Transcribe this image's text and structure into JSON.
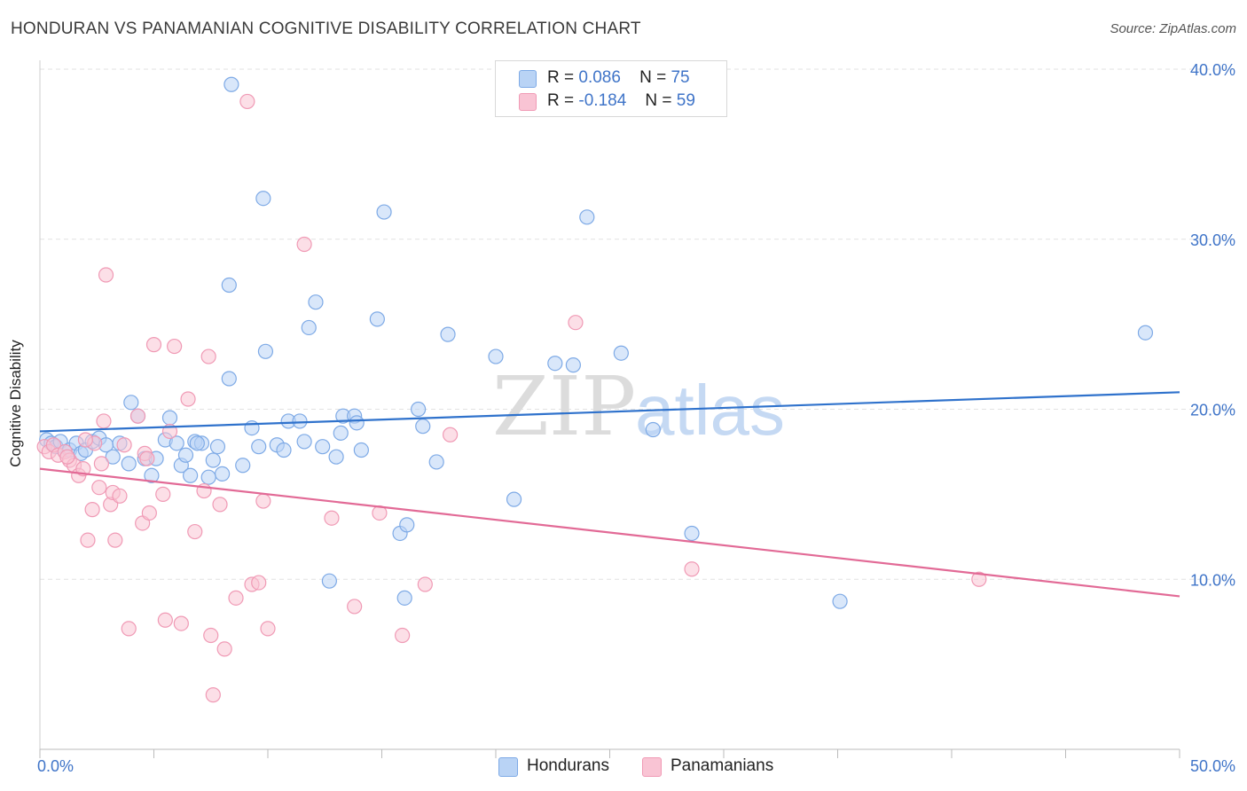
{
  "header": {
    "title": "HONDURAN VS PANAMANIAN COGNITIVE DISABILITY CORRELATION CHART",
    "source": "Source: ZipAtlas.com"
  },
  "watermark": {
    "zip": "ZIP",
    "atlas": "atlas"
  },
  "legend": {
    "rows": [
      {
        "r_label": "R =",
        "r_value": "0.086",
        "n_label": "N =",
        "n_value": "75"
      },
      {
        "r_label": "R =",
        "r_value": "-0.184",
        "n_label": "N =",
        "n_value": "59"
      }
    ]
  },
  "bottom_legend": {
    "series1": "Hondurans",
    "series2": "Panamanians"
  },
  "colors": {
    "blue_fill": "#b9d3f5",
    "blue_stroke": "#7eaae6",
    "blue_line": "#2f72cc",
    "pink_fill": "#f9c4d4",
    "pink_stroke": "#f09ab5",
    "pink_line": "#e26a96",
    "grid": "#e2e2e2",
    "tick_text": "#3f74c8"
  },
  "chart_data": {
    "type": "scatter",
    "title": "HONDURAN VS PANAMANIAN COGNITIVE DISABILITY CORRELATION CHART",
    "xlabel": "",
    "ylabel": "Cognitive Disability",
    "xlim": [
      0,
      50
    ],
    "ylim": [
      0,
      40
    ],
    "x_tick_labels": [
      "0.0%",
      "50.0%"
    ],
    "y_ticks": [
      10,
      20,
      30,
      40
    ],
    "y_tick_labels": [
      "10.0%",
      "20.0%",
      "30.0%",
      "40.0%"
    ],
    "grid": true,
    "series": [
      {
        "name": "Hondurans",
        "color": "#b9d3f5",
        "trend": {
          "x": [
            0,
            50
          ],
          "y": [
            18.7,
            21.0
          ]
        },
        "points": [
          [
            0.3,
            18.2
          ],
          [
            0.5,
            18.0
          ],
          [
            0.7,
            17.8
          ],
          [
            0.9,
            18.1
          ],
          [
            1.1,
            17.5
          ],
          [
            1.3,
            17.6
          ],
          [
            1.6,
            18.0
          ],
          [
            1.8,
            17.4
          ],
          [
            2.0,
            17.6
          ],
          [
            2.3,
            18.1
          ],
          [
            2.6,
            18.3
          ],
          [
            2.9,
            17.9
          ],
          [
            3.2,
            17.2
          ],
          [
            3.5,
            18.0
          ],
          [
            3.9,
            16.8
          ],
          [
            4.3,
            19.6
          ],
          [
            4.6,
            17.1
          ],
          [
            4.9,
            16.1
          ],
          [
            5.1,
            17.1
          ],
          [
            5.5,
            18.2
          ],
          [
            5.7,
            19.5
          ],
          [
            6.0,
            18.0
          ],
          [
            6.2,
            16.7
          ],
          [
            6.4,
            17.3
          ],
          [
            6.6,
            16.1
          ],
          [
            6.8,
            18.1
          ],
          [
            7.1,
            18.0
          ],
          [
            7.4,
            16.0
          ],
          [
            7.6,
            17.0
          ],
          [
            7.8,
            17.8
          ],
          [
            8.0,
            16.2
          ],
          [
            8.3,
            27.3
          ],
          [
            8.3,
            21.8
          ],
          [
            8.9,
            16.7
          ],
          [
            9.3,
            18.9
          ],
          [
            9.6,
            17.8
          ],
          [
            9.8,
            32.4
          ],
          [
            9.9,
            23.4
          ],
          [
            10.4,
            17.9
          ],
          [
            10.7,
            17.6
          ],
          [
            10.9,
            19.3
          ],
          [
            11.4,
            19.3
          ],
          [
            11.6,
            18.1
          ],
          [
            11.8,
            24.8
          ],
          [
            12.1,
            26.3
          ],
          [
            12.4,
            17.8
          ],
          [
            12.7,
            9.9
          ],
          [
            13.0,
            17.2
          ],
          [
            13.2,
            18.6
          ],
          [
            13.3,
            19.6
          ],
          [
            13.8,
            19.6
          ],
          [
            13.9,
            19.2
          ],
          [
            14.1,
            17.6
          ],
          [
            14.8,
            25.3
          ],
          [
            15.1,
            31.6
          ],
          [
            15.8,
            12.7
          ],
          [
            16.0,
            8.9
          ],
          [
            16.1,
            13.2
          ],
          [
            16.6,
            20.0
          ],
          [
            16.8,
            19.0
          ],
          [
            17.4,
            16.9
          ],
          [
            17.9,
            24.4
          ],
          [
            20.0,
            23.1
          ],
          [
            20.8,
            14.7
          ],
          [
            22.6,
            22.7
          ],
          [
            23.4,
            22.6
          ],
          [
            24.0,
            31.3
          ],
          [
            25.5,
            23.3
          ],
          [
            26.9,
            18.8
          ],
          [
            28.6,
            12.7
          ],
          [
            35.1,
            8.7
          ],
          [
            48.5,
            24.5
          ],
          [
            8.4,
            39.1
          ],
          [
            6.9,
            18.0
          ],
          [
            4.0,
            20.4
          ]
        ]
      },
      {
        "name": "Panamanians",
        "color": "#f9c4d4",
        "trend": {
          "x": [
            0,
            50
          ],
          "y": [
            16.5,
            9.0
          ]
        },
        "points": [
          [
            0.2,
            17.8
          ],
          [
            0.4,
            17.5
          ],
          [
            0.6,
            17.9
          ],
          [
            0.8,
            17.3
          ],
          [
            1.1,
            17.5
          ],
          [
            1.3,
            17.0
          ],
          [
            1.5,
            16.7
          ],
          [
            1.7,
            16.1
          ],
          [
            1.9,
            16.5
          ],
          [
            2.1,
            12.3
          ],
          [
            2.3,
            14.1
          ],
          [
            2.4,
            18.0
          ],
          [
            2.6,
            15.4
          ],
          [
            2.7,
            16.8
          ],
          [
            2.8,
            19.3
          ],
          [
            2.9,
            27.9
          ],
          [
            3.1,
            14.4
          ],
          [
            3.2,
            15.1
          ],
          [
            3.3,
            12.3
          ],
          [
            3.5,
            14.9
          ],
          [
            3.7,
            17.9
          ],
          [
            3.9,
            7.1
          ],
          [
            4.3,
            19.6
          ],
          [
            4.5,
            13.3
          ],
          [
            4.6,
            17.4
          ],
          [
            4.7,
            17.1
          ],
          [
            4.8,
            13.9
          ],
          [
            5.0,
            23.8
          ],
          [
            5.4,
            15.0
          ],
          [
            5.5,
            7.6
          ],
          [
            5.7,
            18.7
          ],
          [
            5.9,
            23.7
          ],
          [
            6.2,
            7.4
          ],
          [
            6.5,
            20.6
          ],
          [
            6.8,
            12.8
          ],
          [
            7.2,
            15.2
          ],
          [
            7.4,
            23.1
          ],
          [
            7.5,
            6.7
          ],
          [
            7.6,
            3.2
          ],
          [
            7.9,
            14.4
          ],
          [
            8.1,
            5.9
          ],
          [
            8.6,
            8.9
          ],
          [
            9.1,
            38.1
          ],
          [
            9.3,
            9.7
          ],
          [
            9.6,
            9.8
          ],
          [
            9.8,
            14.6
          ],
          [
            10.0,
            7.1
          ],
          [
            11.6,
            29.7
          ],
          [
            12.8,
            13.6
          ],
          [
            13.8,
            8.4
          ],
          [
            14.9,
            13.9
          ],
          [
            15.9,
            6.7
          ],
          [
            16.9,
            9.7
          ],
          [
            18.0,
            18.5
          ],
          [
            23.5,
            25.1
          ],
          [
            28.6,
            10.6
          ],
          [
            41.2,
            10.0
          ],
          [
            2.0,
            18.2
          ],
          [
            1.2,
            17.2
          ]
        ]
      }
    ]
  }
}
